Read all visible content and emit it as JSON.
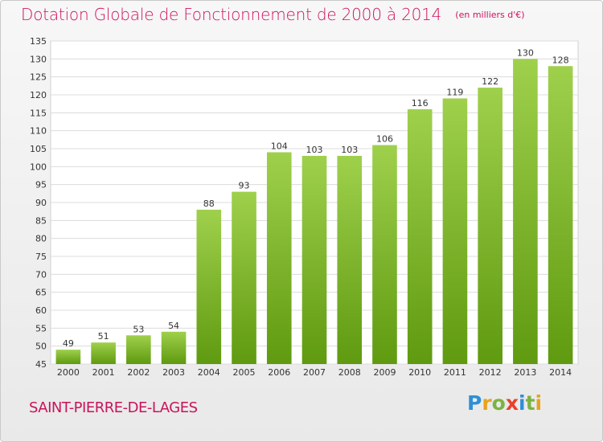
{
  "title": "Dotation Globale de Fonctionnement de 2000 à 2014",
  "unit_note": "(en milliers d'€)",
  "commune": "SAINT-PIERRE-DE-LAGES",
  "brand": {
    "name": "Proxiti",
    "letters": [
      "P",
      "r",
      "o",
      "x",
      "i",
      "t",
      "i"
    ],
    "letter_colors": [
      "#2f8fd6",
      "#e8a21d",
      "#7cb342",
      "#e8412c",
      "#2f8fd6",
      "#7cb342",
      "#e8a21d"
    ]
  },
  "colors": {
    "title": "#d0115f",
    "bar_top": "#9fd04c",
    "bar_bottom": "#5f9a10",
    "grid": "#dcdcdc",
    "axis_text": "#333333"
  },
  "chart_data": {
    "type": "bar",
    "title": "Dotation Globale de Fonctionnement de 2000 à 2014",
    "subtitle": "(en milliers d'€)",
    "xlabel": "",
    "ylabel": "",
    "categories": [
      "2000",
      "2001",
      "2002",
      "2003",
      "2004",
      "2005",
      "2006",
      "2007",
      "2008",
      "2009",
      "2010",
      "2011",
      "2012",
      "2013",
      "2014"
    ],
    "values": [
      49,
      51,
      53,
      54,
      88,
      93,
      104,
      103,
      103,
      106,
      116,
      119,
      122,
      130,
      128
    ],
    "ylim": [
      45,
      135
    ],
    "yticks": [
      45,
      50,
      55,
      60,
      65,
      70,
      75,
      80,
      85,
      90,
      95,
      100,
      105,
      110,
      115,
      120,
      125,
      130,
      135
    ],
    "grid": true,
    "legend": "none",
    "data_labels": true
  }
}
